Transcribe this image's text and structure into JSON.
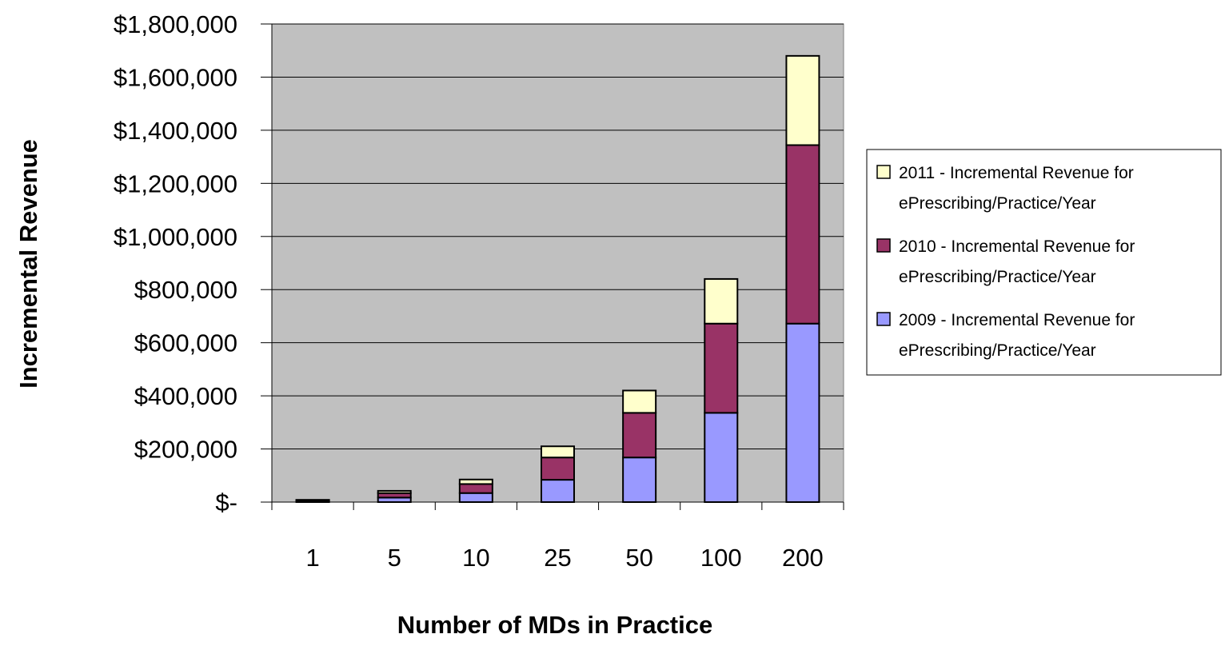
{
  "chart_data": {
    "type": "bar",
    "stacked": true,
    "title": "",
    "xlabel": "Number of MDs in Practice",
    "ylabel": "Incremental Revenue",
    "categories": [
      "1",
      "5",
      "10",
      "25",
      "50",
      "100",
      "200"
    ],
    "ylim": [
      0,
      1800000
    ],
    "yticks": [
      0,
      200000,
      400000,
      600000,
      800000,
      1000000,
      1200000,
      1400000,
      1600000,
      1800000
    ],
    "ytick_labels": [
      "$-",
      "$200,000",
      "$400,000",
      "$600,000",
      "$800,000",
      "$1,000,000",
      "$1,200,000",
      "$1,400,000",
      "$1,600,000",
      "$1,800,000"
    ],
    "grid": true,
    "legend_position": "right",
    "plot_background": "#c0c0c0",
    "series": [
      {
        "name": "2009 - Incremental Revenue for ePrescribing/Practice/Year",
        "color": "#9999ff",
        "values": [
          3400,
          17000,
          34000,
          84000,
          168000,
          336000,
          672000
        ]
      },
      {
        "name": "2010 - Incremental Revenue for ePrescribing/Practice/Year",
        "color": "#993366",
        "values": [
          3400,
          17000,
          34000,
          84000,
          168000,
          336000,
          672000
        ]
      },
      {
        "name": "2011 - Incremental Revenue for ePrescribing/Practice/Year",
        "color": "#ffffcc",
        "values": [
          1700,
          8400,
          17000,
          42000,
          84000,
          168000,
          336000
        ]
      }
    ],
    "legend_order": [
      2,
      1,
      0
    ],
    "legend_lines": [
      [
        "2011 - Incremental Revenue for",
        "ePrescribing/Practice/Year"
      ],
      [
        "2010 - Incremental Revenue for",
        "ePrescribing/Practice/Year"
      ],
      [
        "2009 - Incremental Revenue for",
        "ePrescribing/Practice/Year"
      ]
    ]
  }
}
